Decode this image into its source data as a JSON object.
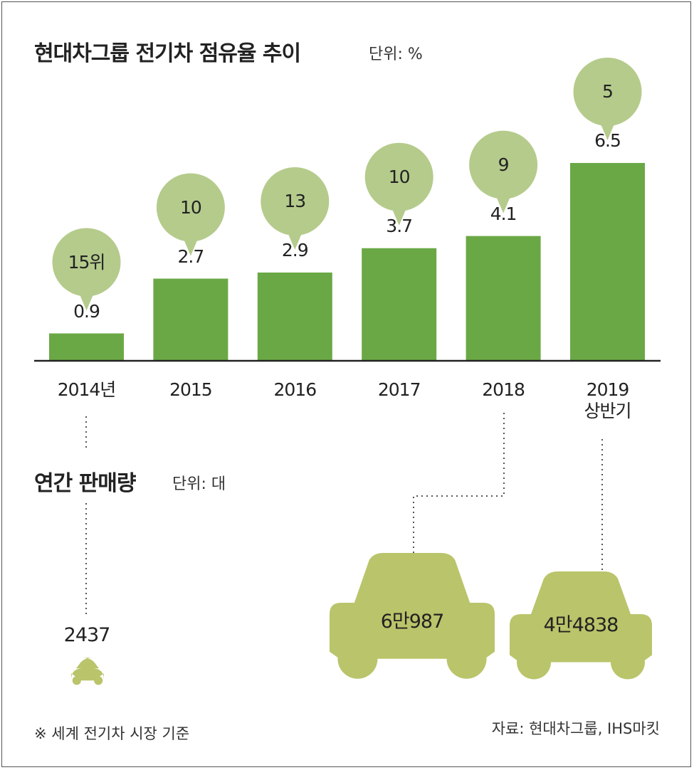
{
  "header": {
    "title": "현대차그룹 전기차 점유율 추이",
    "unit": "단위: %"
  },
  "sales_section": {
    "title": "연간 판매량",
    "unit": "단위: 대"
  },
  "footer": {
    "note": "※ 세계 전기차 시장 기준",
    "source": "자료: 현대차그룹, IHS마킷"
  },
  "colors": {
    "bar": "#6aa845",
    "bubble": "#b5cb8c",
    "car": "#bac46a",
    "axis": "#222222"
  },
  "icons": [
    "speech-bubble-icon",
    "car-icon"
  ],
  "chart_data": {
    "type": "bar",
    "categories": [
      "2014년",
      "2015",
      "2016",
      "2017",
      "2018",
      "2019\n상반기"
    ],
    "values": [
      0.9,
      2.7,
      2.9,
      3.7,
      4.1,
      6.5
    ],
    "value_labels": [
      "0.9",
      "2.7",
      "2.9",
      "3.7",
      "4.1",
      "6.5"
    ],
    "ranks": [
      "15위",
      "10",
      "13",
      "10",
      "9",
      "5"
    ],
    "ylim": [
      0,
      6.5
    ],
    "grid": false,
    "annual_sales": [
      {
        "year": "2014년",
        "value": 2437,
        "label": "2437"
      },
      {
        "year": "2018",
        "value": 60987,
        "label": "6만987"
      },
      {
        "year": "2019\n상반기",
        "value": 44838,
        "label": "4만4838"
      }
    ]
  }
}
